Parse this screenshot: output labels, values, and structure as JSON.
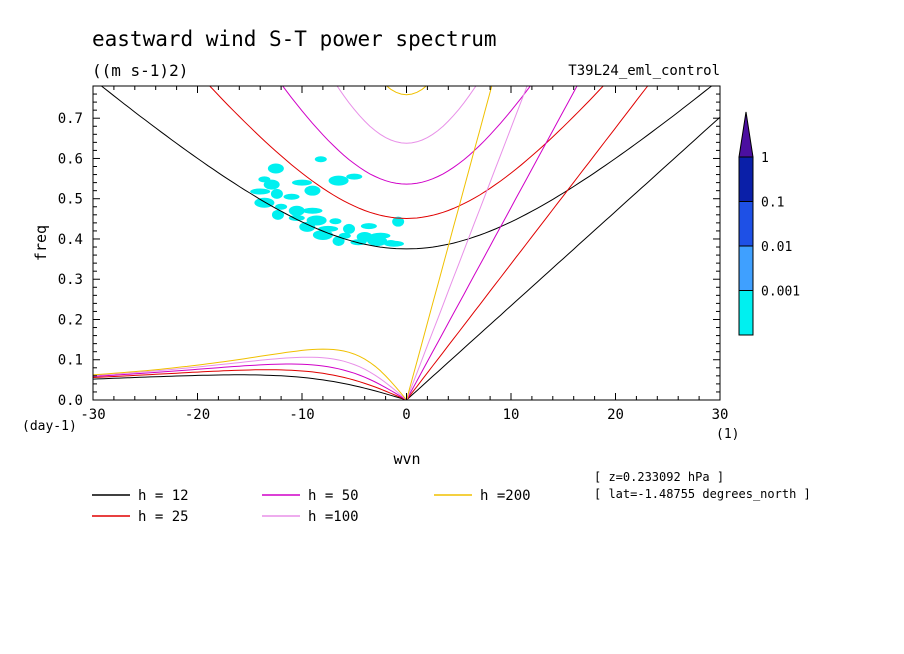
{
  "chart_data": {
    "type": "line",
    "title": "eastward wind S-T power spectrum",
    "units": "((m s-1)2)",
    "run_name": "T39L24_eml_control",
    "xlabel": "wvn",
    "ylabel": "freq",
    "x_unit_label": "(1)",
    "y_unit_label": "(day-1)",
    "xlim": [
      -30,
      30
    ],
    "ylim": [
      0,
      0.78
    ],
    "xticks": [
      "-30",
      "-20",
      "-10",
      "0",
      "10",
      "20",
      "30"
    ],
    "yticks": [
      "0.0",
      "0.1",
      "0.2",
      "0.3",
      "0.4",
      "0.5",
      "0.6",
      "0.7"
    ],
    "info_lines": [
      "[ z=0.233092 hPa ]",
      "[ lat=-1.48755 degrees_north ]"
    ],
    "colorbar": {
      "labels": [
        "1",
        "0.1",
        "0.01",
        "0.001"
      ],
      "colors": [
        "#4b0fa0",
        "#0a1fa8",
        "#1e50e6",
        "#3fa0ff",
        "#00f0f0"
      ]
    },
    "series": [
      {
        "name": "h = 12",
        "h": 12,
        "color": "#000000"
      },
      {
        "name": "h = 25",
        "h": 25,
        "color": "#e00000"
      },
      {
        "name": "h = 50",
        "h": 50,
        "color": "#d000c8"
      },
      {
        "name": "h =100",
        "h": 100,
        "color": "#e890e8"
      },
      {
        "name": "h =200",
        "h": 200,
        "color": "#f0c000"
      }
    ],
    "power_patches": [
      {
        "wvn": -13.6,
        "freq": 0.548
      },
      {
        "wvn": -12.9,
        "freq": 0.535
      },
      {
        "wvn": -14.0,
        "freq": 0.518
      },
      {
        "wvn": -12.4,
        "freq": 0.512
      },
      {
        "wvn": -11.0,
        "freq": 0.505
      },
      {
        "wvn": -13.6,
        "freq": 0.49
      },
      {
        "wvn": -12.0,
        "freq": 0.48
      },
      {
        "wvn": -10.5,
        "freq": 0.47
      },
      {
        "wvn": -9.0,
        "freq": 0.47
      },
      {
        "wvn": -12.3,
        "freq": 0.46
      },
      {
        "wvn": -10.5,
        "freq": 0.452
      },
      {
        "wvn": -8.6,
        "freq": 0.446
      },
      {
        "wvn": -6.8,
        "freq": 0.444
      },
      {
        "wvn": -9.5,
        "freq": 0.43
      },
      {
        "wvn": -7.5,
        "freq": 0.425
      },
      {
        "wvn": -5.5,
        "freq": 0.425
      },
      {
        "wvn": -3.6,
        "freq": 0.432
      },
      {
        "wvn": -8.0,
        "freq": 0.41
      },
      {
        "wvn": -5.9,
        "freq": 0.408
      },
      {
        "wvn": -4.0,
        "freq": 0.405
      },
      {
        "wvn": -2.5,
        "freq": 0.408
      },
      {
        "wvn": -6.5,
        "freq": 0.395
      },
      {
        "wvn": -4.6,
        "freq": 0.392
      },
      {
        "wvn": -2.8,
        "freq": 0.395
      },
      {
        "wvn": -1.5,
        "freq": 0.39
      },
      {
        "wvn": -9.0,
        "freq": 0.52
      },
      {
        "wvn": -10.0,
        "freq": 0.54
      },
      {
        "wvn": -0.8,
        "freq": 0.443
      },
      {
        "wvn": -5.0,
        "freq": 0.555
      },
      {
        "wvn": -6.5,
        "freq": 0.545
      },
      {
        "wvn": -8.2,
        "freq": 0.598
      },
      {
        "wvn": -12.5,
        "freq": 0.575
      },
      {
        "wvn": -1.2,
        "freq": 0.388
      }
    ]
  }
}
